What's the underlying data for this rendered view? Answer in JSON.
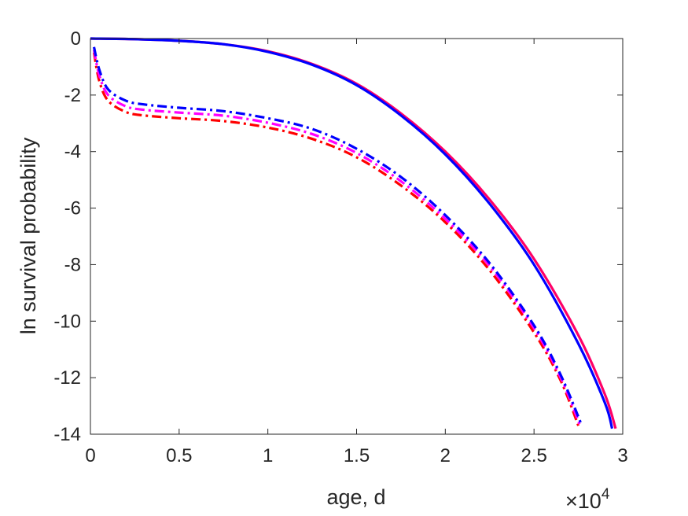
{
  "chart_data": {
    "type": "line",
    "title": "",
    "xlabel": "age, d",
    "ylabel": "ln survival probability",
    "x_multiplier_label": "×10",
    "x_multiplier_exponent": "4",
    "xlim": [
      0,
      3
    ],
    "ylim": [
      -14,
      0
    ],
    "xticks": [
      0,
      0.5,
      1,
      1.5,
      2,
      2.5,
      3
    ],
    "xtick_labels": [
      "0",
      "0.5",
      "1",
      "1.5",
      "2",
      "2.5",
      "3"
    ],
    "yticks": [
      0,
      -2,
      -4,
      -6,
      -8,
      -10,
      -12,
      -14
    ],
    "ytick_labels": [
      "0",
      "-2",
      "-4",
      "-6",
      "-8",
      "-10",
      "-12",
      "-14"
    ],
    "grid": false,
    "box": true,
    "series": [
      {
        "color": "#ff0066",
        "style": "solid",
        "x": [
          0,
          0.25,
          0.5,
          0.75,
          1.0,
          1.25,
          1.5,
          1.75,
          2.0,
          2.25,
          2.5,
          2.75,
          2.9,
          2.96
        ],
        "y": [
          0,
          -0.02,
          -0.08,
          -0.2,
          -0.45,
          -0.9,
          -1.6,
          -2.65,
          -4.0,
          -5.7,
          -7.8,
          -10.5,
          -12.6,
          -13.8
        ]
      },
      {
        "color": "#0000ff",
        "style": "solid",
        "x": [
          0,
          0.25,
          0.5,
          0.75,
          1.0,
          1.25,
          1.5,
          1.75,
          2.0,
          2.25,
          2.5,
          2.75,
          2.9,
          2.94
        ],
        "y": [
          0,
          -0.02,
          -0.08,
          -0.2,
          -0.47,
          -0.93,
          -1.65,
          -2.72,
          -4.1,
          -5.85,
          -8.0,
          -10.8,
          -12.9,
          -13.8
        ]
      },
      {
        "color": "#ff0000",
        "style": "dashdot",
        "x": [
          0.02,
          0.05,
          0.1,
          0.2,
          0.3,
          0.5,
          0.75,
          1.0,
          1.25,
          1.5,
          1.75,
          2.0,
          2.25,
          2.5,
          2.65,
          2.75
        ],
        "y": [
          -0.5,
          -1.5,
          -2.2,
          -2.6,
          -2.72,
          -2.82,
          -2.92,
          -3.15,
          -3.55,
          -4.2,
          -5.2,
          -6.5,
          -8.2,
          -10.4,
          -12.1,
          -13.7
        ]
      },
      {
        "color": "#ff00ff",
        "style": "dashdot",
        "x": [
          0.02,
          0.05,
          0.1,
          0.2,
          0.3,
          0.5,
          0.75,
          1.0,
          1.25,
          1.5,
          1.75,
          2.0,
          2.25,
          2.5,
          2.65,
          2.76
        ],
        "y": [
          -0.4,
          -1.3,
          -2.0,
          -2.4,
          -2.52,
          -2.62,
          -2.73,
          -2.98,
          -3.38,
          -4.05,
          -5.05,
          -6.38,
          -8.05,
          -10.25,
          -12.0,
          -13.7
        ]
      },
      {
        "color": "#0000ff",
        "style": "dashdot",
        "x": [
          0.02,
          0.05,
          0.1,
          0.2,
          0.3,
          0.5,
          0.75,
          1.0,
          1.25,
          1.5,
          1.75,
          2.0,
          2.25,
          2.5,
          2.65,
          2.77
        ],
        "y": [
          -0.3,
          -1.1,
          -1.8,
          -2.2,
          -2.33,
          -2.45,
          -2.57,
          -2.82,
          -3.2,
          -3.9,
          -4.9,
          -6.25,
          -7.95,
          -10.15,
          -11.9,
          -13.7
        ]
      }
    ]
  }
}
